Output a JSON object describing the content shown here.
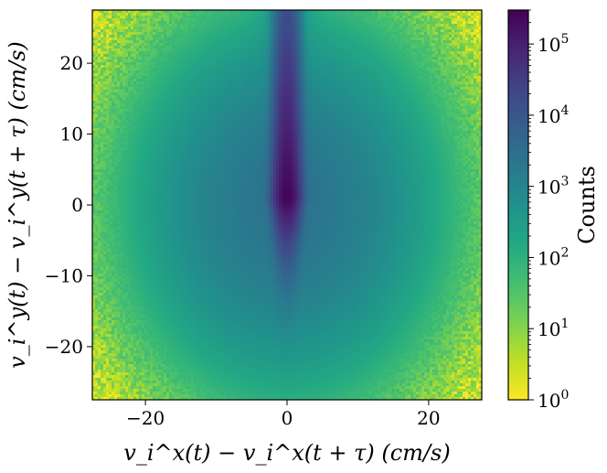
{
  "chart_data": {
    "type": "heatmap",
    "title": "",
    "xlabel": "v_i^x(t) − v_i^x(t + τ) (cm/s)",
    "ylabel": "v_i^y(t) − v_i^y(t + τ) (cm/s)",
    "xlim": [
      -27.5,
      27.5
    ],
    "ylim": [
      -27.5,
      27.5
    ],
    "xticks": [
      -20,
      0,
      20
    ],
    "xtick_labels": [
      "−20",
      "0",
      "20"
    ],
    "yticks": [
      20,
      10,
      0,
      -10,
      -20
    ],
    "ytick_labels": [
      "20",
      "10",
      "0",
      "−10",
      "−20"
    ],
    "grid": false,
    "colorbar": {
      "label": "Counts",
      "scale": "log",
      "range": [
        1,
        300000
      ],
      "colormap": "viridis_r",
      "tick_base": "10",
      "tick_exponents": [
        "0",
        "1",
        "2",
        "3",
        "4",
        "5"
      ],
      "tick_values": [
        1,
        10,
        100,
        1000,
        10000,
        100000
      ]
    },
    "distribution": {
      "peak_location": [
        0,
        1
      ],
      "peak_counts": 300000,
      "description_values": {
        "center_high_counts_x_range": [
          -0.5,
          0.5
        ],
        "center_high_counts_y_range": [
          0,
          8
        ],
        "upward_plume_to_y": 27,
        "edge_counts_near_corners": 1
      }
    }
  }
}
